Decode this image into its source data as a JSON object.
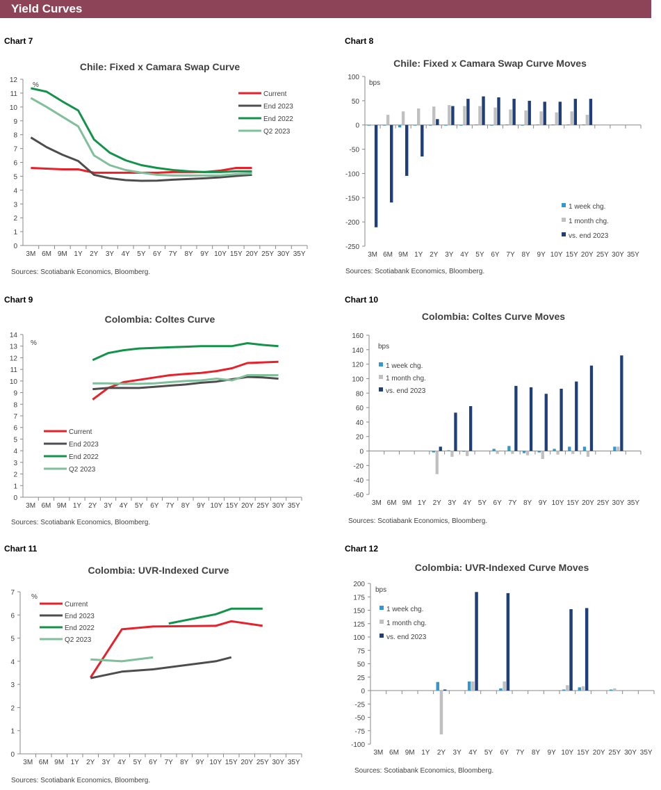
{
  "header": {
    "title": "Yield Curves"
  },
  "colors": {
    "header_bg": "#8e4458",
    "current": "#e8202a",
    "end2023": "#4d4d4d",
    "end2022": "#13934a",
    "q2_2023": "#7fbf99",
    "week": "#3399cc",
    "month": "#c0c0c0",
    "ytd": "#1f3f7a"
  },
  "chart_data": [
    {
      "label": "Chart 7",
      "type": "line",
      "title": "Chile:  Fixed x Camara Swap Curve",
      "unit": "%",
      "ylim": [
        0,
        12
      ],
      "ystep": 1,
      "legend": "top-right",
      "sources": "Sources: Scotiabank Economics, Bloomberg.",
      "categories": [
        "3M",
        "6M",
        "9M",
        "1Y",
        "2Y",
        "3Y",
        "4Y",
        "5Y",
        "6Y",
        "7Y",
        "8Y",
        "9Y",
        "10Y",
        "15Y",
        "20Y",
        "25Y",
        "30Y",
        "35Y"
      ],
      "series": [
        {
          "name": "Current",
          "color": "#e8202a",
          "values": [
            5.6,
            5.55,
            5.5,
            5.5,
            5.25,
            5.25,
            5.25,
            5.25,
            5.25,
            5.3,
            5.3,
            5.3,
            5.4,
            5.6,
            5.6,
            null,
            null,
            null
          ]
        },
        {
          "name": "End 2023",
          "color": "#4d4d4d",
          "values": [
            7.8,
            7.1,
            6.55,
            6.1,
            5.1,
            4.85,
            4.72,
            4.67,
            4.68,
            4.75,
            4.8,
            4.85,
            4.92,
            5.02,
            5.1,
            null,
            null,
            null
          ]
        },
        {
          "name": "End 2022",
          "color": "#13934a",
          "values": [
            11.35,
            11.1,
            10.4,
            9.75,
            7.65,
            6.7,
            6.15,
            5.8,
            5.6,
            5.45,
            5.35,
            5.3,
            5.3,
            5.35,
            5.35,
            null,
            null,
            null
          ]
        },
        {
          "name": "Q2 2023",
          "color": "#7fbf99",
          "values": [
            10.65,
            10.0,
            9.3,
            8.6,
            6.5,
            5.8,
            5.45,
            5.25,
            5.1,
            5.05,
            5.05,
            5.05,
            5.05,
            5.15,
            5.2,
            null,
            null,
            null
          ]
        }
      ]
    },
    {
      "label": "Chart 8",
      "type": "bar",
      "title": "Chile:  Fixed x Camara Swap Curve Moves",
      "unit": "bps",
      "ylim": [
        -250,
        100
      ],
      "ystep": 50,
      "legend": "bottom-right",
      "sources": "Sources: Scotiabank Economics, Bloomberg.",
      "categories": [
        "3M",
        "6M",
        "9M",
        "1Y",
        "2Y",
        "3Y",
        "4Y",
        "5Y",
        "6Y",
        "7Y",
        "8Y",
        "9Y",
        "10Y",
        "15Y",
        "20Y",
        "25Y",
        "30Y",
        "35Y"
      ],
      "series": [
        {
          "name": "1 week chg.",
          "color": "#3399cc",
          "values": [
            -1,
            -1,
            -5,
            -1,
            -1,
            -1,
            -1,
            1,
            -1,
            1,
            -1,
            1,
            1,
            1,
            1,
            null,
            null,
            null
          ]
        },
        {
          "name": "1 month chg.",
          "color": "#c0c0c0",
          "values": [
            0,
            21,
            28,
            34,
            38,
            41,
            39,
            39,
            36,
            32,
            30,
            28,
            26,
            28,
            21,
            null,
            null,
            null
          ]
        },
        {
          "name": "vs. end 2023",
          "color": "#1f3f7a",
          "values": [
            -211,
            -160,
            -105,
            -65,
            12,
            39,
            54,
            59,
            57,
            54,
            50,
            48,
            48,
            54,
            54,
            null,
            null,
            null
          ]
        }
      ]
    },
    {
      "label": "Chart 9",
      "type": "line",
      "title": "Colombia:  Coltes Curve",
      "unit": "%",
      "ylim": [
        0,
        14
      ],
      "ystep": 1,
      "legend": "bottom-left",
      "sources": "Sources: Scotiabank Economics, Bloomberg.",
      "categories": [
        "3M",
        "6M",
        "9M",
        "1Y",
        "2Y",
        "3Y",
        "4Y",
        "5Y",
        "6Y",
        "7Y",
        "8Y",
        "9Y",
        "10Y",
        "15Y",
        "20Y",
        "25Y",
        "30Y",
        "35Y"
      ],
      "series": [
        {
          "name": "Current",
          "color": "#e8202a",
          "values": [
            null,
            null,
            null,
            null,
            8.4,
            9.4,
            9.9,
            10.1,
            10.3,
            10.5,
            10.6,
            10.7,
            10.85,
            11.1,
            11.55,
            11.6,
            11.65,
            null
          ]
        },
        {
          "name": "End 2023",
          "color": "#4d4d4d",
          "values": [
            null,
            null,
            null,
            null,
            9.3,
            9.4,
            9.4,
            9.4,
            9.5,
            9.6,
            9.7,
            9.85,
            9.95,
            10.15,
            10.35,
            10.3,
            10.2,
            null
          ]
        },
        {
          "name": "End 2022",
          "color": "#13934a",
          "values": [
            null,
            null,
            null,
            null,
            11.8,
            12.4,
            12.65,
            12.8,
            12.85,
            12.9,
            12.95,
            13.0,
            13.0,
            13.0,
            13.25,
            13.1,
            13.0,
            null
          ]
        },
        {
          "name": "Q2 2023",
          "color": "#7fbf99",
          "values": [
            null,
            null,
            null,
            null,
            9.8,
            9.8,
            9.75,
            9.75,
            9.8,
            9.9,
            10.0,
            10.05,
            10.2,
            10.05,
            10.5,
            10.5,
            10.5,
            null
          ]
        }
      ]
    },
    {
      "label": "Chart 10",
      "type": "bar",
      "title": "Colombia:  Coltes Curve Moves",
      "unit": "bps",
      "ylim": [
        -60,
        160
      ],
      "ystep": 20,
      "legend": "top-left",
      "sources": "Sources: Scotiabank Economics, Bloomberg.",
      "categories": [
        "3M",
        "6M",
        "9M",
        "1Y",
        "2Y",
        "3Y",
        "4Y",
        "5Y",
        "6Y",
        "7Y",
        "8Y",
        "9Y",
        "10Y",
        "15Y",
        "20Y",
        "25Y",
        "30Y",
        "35Y"
      ],
      "series": [
        {
          "name": "1 week chg.",
          "color": "#3399cc",
          "values": [
            null,
            null,
            null,
            null,
            -2,
            1,
            0,
            null,
            3,
            7,
            -3,
            -2,
            3,
            6,
            6,
            null,
            6,
            null
          ]
        },
        {
          "name": "1 month chg.",
          "color": "#c0c0c0",
          "values": [
            null,
            null,
            null,
            null,
            -32,
            -8,
            -7,
            null,
            -4,
            -4,
            -6,
            -11,
            -5,
            -4,
            -8,
            null,
            6,
            null
          ]
        },
        {
          "name": "vs. end 2023",
          "color": "#1f3f7a",
          "values": [
            null,
            null,
            null,
            null,
            6,
            53,
            62,
            null,
            null,
            90,
            88,
            79,
            86,
            96,
            118,
            null,
            132,
            null
          ]
        }
      ]
    },
    {
      "label": "Chart 11",
      "type": "line",
      "title": "Colombia:  UVR-Indexed Curve",
      "unit": "%",
      "ylim": [
        0,
        7
      ],
      "ystep": 1,
      "legend": "top-left",
      "sources": "Sources: Scotiabank Economics, Bloomberg.",
      "categories": [
        "3M",
        "6M",
        "9M",
        "1Y",
        "2Y",
        "3Y",
        "4Y",
        "5Y",
        "6Y",
        "7Y",
        "8Y",
        "9Y",
        "10Y",
        "15Y",
        "20Y",
        "25Y",
        "30Y",
        "35Y"
      ],
      "series": [
        {
          "name": "Current",
          "color": "#e8202a",
          "values": [
            null,
            null,
            null,
            null,
            3.3,
            null,
            5.38,
            null,
            5.5,
            null,
            null,
            null,
            5.53,
            5.73,
            null,
            5.53,
            null,
            null
          ]
        },
        {
          "name": "End 2023",
          "color": "#4d4d4d",
          "values": [
            null,
            null,
            null,
            null,
            3.27,
            null,
            3.55,
            null,
            3.65,
            null,
            null,
            null,
            4.0,
            4.17,
            null,
            null,
            null,
            null
          ]
        },
        {
          "name": "End 2022",
          "color": "#13934a",
          "values": [
            null,
            null,
            null,
            null,
            null,
            null,
            null,
            null,
            null,
            5.63,
            null,
            null,
            6.03,
            6.27,
            null,
            6.27,
            null,
            null
          ]
        },
        {
          "name": "Q2 2023",
          "color": "#7fbf99",
          "values": [
            null,
            null,
            null,
            null,
            4.08,
            null,
            4.0,
            null,
            4.17,
            null,
            null,
            null,
            null,
            null,
            null,
            null,
            null,
            null
          ]
        }
      ]
    },
    {
      "label": "Chart 12",
      "type": "bar",
      "title": "Colombia:  UVR-Indexed  Curve Moves",
      "unit": "bps",
      "ylim": [
        -100,
        200
      ],
      "ystep": 25,
      "legend": "top-left",
      "sources": "Sources: Scotiabank Economics, Bloomberg.",
      "categories": [
        "3M",
        "6M",
        "9M",
        "1Y",
        "2Y",
        "3Y",
        "4Y",
        "5Y",
        "6Y",
        "7Y",
        "8Y",
        "9Y",
        "10Y",
        "15Y",
        "20Y",
        "25Y",
        "30Y",
        "35Y"
      ],
      "series": [
        {
          "name": "1 week chg.",
          "color": "#3399cc",
          "values": [
            null,
            null,
            null,
            null,
            16,
            null,
            17,
            null,
            4,
            null,
            null,
            null,
            2,
            6,
            null,
            2,
            null,
            null
          ]
        },
        {
          "name": "1 month chg.",
          "color": "#c0c0c0",
          "values": [
            null,
            null,
            null,
            null,
            -82,
            null,
            17,
            null,
            17,
            null,
            null,
            null,
            10,
            8,
            null,
            4,
            null,
            null
          ]
        },
        {
          "name": "vs. end 2023",
          "color": "#1f3f7a",
          "values": [
            null,
            null,
            null,
            null,
            2,
            null,
            184,
            null,
            182,
            null,
            null,
            null,
            152,
            154,
            null,
            null,
            null,
            null
          ]
        }
      ]
    }
  ]
}
